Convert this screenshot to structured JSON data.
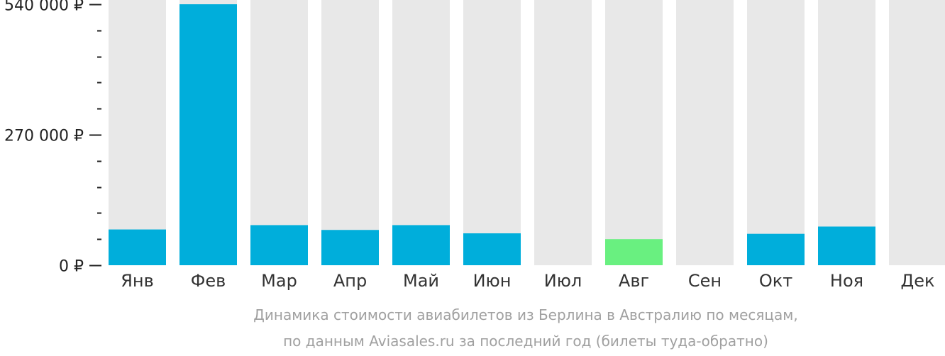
{
  "chart_data": {
    "type": "bar",
    "categories": [
      "Янв",
      "Фев",
      "Мар",
      "Апр",
      "Май",
      "Июн",
      "Июл",
      "Авг",
      "Сен",
      "Окт",
      "Ноя",
      "Дек"
    ],
    "values": [
      74000,
      540000,
      83000,
      73000,
      83000,
      66000,
      0,
      54000,
      0,
      65000,
      80000,
      0
    ],
    "highlight_index": 7,
    "ylim": [
      0,
      540000
    ],
    "yticks": [
      {
        "value": 0,
        "label": "0 ₽"
      },
      {
        "value": 270000,
        "label": "270 000 ₽"
      },
      {
        "value": 540000,
        "label": "540 000 ₽"
      }
    ],
    "minor_tick_step": 54000,
    "title": "Динамика стоимости авиабилетов из Берлина в Австралию по месяцам,",
    "subtitle": "по данным Aviasales.ru за последний год (билеты туда-обратно)",
    "colors": {
      "bar": "#00aedb",
      "highlight": "#69f080",
      "background_bar": "#e8e8e8",
      "axis": "#222222",
      "caption": "#a0a0a0"
    }
  }
}
